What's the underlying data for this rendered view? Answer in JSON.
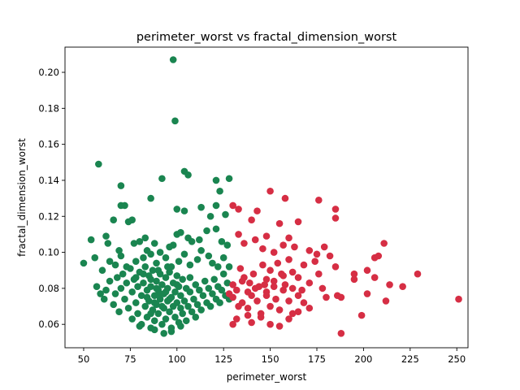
{
  "chart_data": {
    "type": "scatter",
    "title": "perimeter_worst vs fractal_dimension_worst",
    "xlabel": "perimeter_worst",
    "ylabel": "fractal_dimension_worst",
    "xlim": [
      40,
      256
    ],
    "ylim": [
      0.047,
      0.214
    ],
    "xticks": [
      50,
      75,
      100,
      125,
      150,
      175,
      200,
      225,
      250
    ],
    "yticks": [
      0.06,
      0.08,
      0.1,
      0.12,
      0.14,
      0.16,
      0.18,
      0.2
    ],
    "ytick_labels": [
      "0.06",
      "0.08",
      "0.10",
      "0.12",
      "0.14",
      "0.16",
      "0.18",
      "0.20"
    ],
    "grid": false,
    "legend": "none",
    "series": [
      {
        "color": "#1a8550",
        "points": [
          [
            98,
            0.207
          ],
          [
            99,
            0.173
          ],
          [
            58,
            0.149
          ],
          [
            70,
            0.137
          ],
          [
            92,
            0.141
          ],
          [
            104,
            0.145
          ],
          [
            106,
            0.143
          ],
          [
            121,
            0.14
          ],
          [
            128,
            0.141
          ],
          [
            123,
            0.134
          ],
          [
            113,
            0.125
          ],
          [
            100,
            0.124
          ],
          [
            104,
            0.123
          ],
          [
            70,
            0.126
          ],
          [
            72,
            0.126
          ],
          [
            86,
            0.13
          ],
          [
            66,
            0.118
          ],
          [
            74,
            0.117
          ],
          [
            76,
            0.118
          ],
          [
            118,
            0.12
          ],
          [
            126,
            0.121
          ],
          [
            121,
            0.126
          ],
          [
            54,
            0.107
          ],
          [
            62,
            0.109
          ],
          [
            63,
            0.105
          ],
          [
            69,
            0.101
          ],
          [
            77,
            0.105
          ],
          [
            80,
            0.106
          ],
          [
            83,
            0.108
          ],
          [
            88,
            0.105
          ],
          [
            96,
            0.103
          ],
          [
            98,
            0.104
          ],
          [
            100,
            0.11
          ],
          [
            102,
            0.111
          ],
          [
            106,
            0.108
          ],
          [
            108,
            0.106
          ],
          [
            112,
            0.107
          ],
          [
            116,
            0.112
          ],
          [
            121,
            0.113
          ],
          [
            124,
            0.106
          ],
          [
            127,
            0.104
          ],
          [
            50,
            0.094
          ],
          [
            56,
            0.097
          ],
          [
            60,
            0.09
          ],
          [
            64,
            0.095
          ],
          [
            67,
            0.093
          ],
          [
            70,
            0.098
          ],
          [
            73,
            0.092
          ],
          [
            78,
            0.095
          ],
          [
            82,
            0.097
          ],
          [
            84,
            0.101
          ],
          [
            86,
            0.099
          ],
          [
            89,
            0.094
          ],
          [
            91,
            0.1
          ],
          [
            94,
            0.097
          ],
          [
            97,
            0.092
          ],
          [
            101,
            0.095
          ],
          [
            104,
            0.099
          ],
          [
            107,
            0.093
          ],
          [
            111,
            0.096
          ],
          [
            113,
            0.101
          ],
          [
            117,
            0.098
          ],
          [
            119,
            0.094
          ],
          [
            122,
            0.092
          ],
          [
            125,
            0.097
          ],
          [
            128,
            0.092
          ],
          [
            57,
            0.081
          ],
          [
            59,
            0.077
          ],
          [
            61,
            0.074
          ],
          [
            62,
            0.079
          ],
          [
            64,
            0.084
          ],
          [
            66,
            0.071
          ],
          [
            67,
            0.077
          ],
          [
            68,
            0.086
          ],
          [
            69,
            0.067
          ],
          [
            70,
            0.08
          ],
          [
            71,
            0.088
          ],
          [
            72,
            0.074
          ],
          [
            73,
            0.083
          ],
          [
            74,
            0.069
          ],
          [
            75,
            0.091
          ],
          [
            76,
            0.078
          ],
          [
            76,
            0.063
          ],
          [
            77,
            0.085
          ],
          [
            78,
            0.072
          ],
          [
            79,
            0.081
          ],
          [
            79,
            0.066
          ],
          [
            80,
            0.089
          ],
          [
            81,
            0.076
          ],
          [
            81,
            0.06
          ],
          [
            82,
            0.083
          ],
          [
            83,
            0.07
          ],
          [
            83,
            0.092
          ],
          [
            84,
            0.079
          ],
          [
            84,
            0.064
          ],
          [
            85,
            0.087
          ],
          [
            85,
            0.073
          ],
          [
            86,
            0.058
          ],
          [
            86,
            0.081
          ],
          [
            87,
            0.068
          ],
          [
            87,
            0.09
          ],
          [
            88,
            0.076
          ],
          [
            88,
            0.062
          ],
          [
            89,
            0.084
          ],
          [
            89,
            0.071
          ],
          [
            90,
            0.079
          ],
          [
            90,
            0.066
          ],
          [
            91,
            0.088
          ],
          [
            91,
            0.074
          ],
          [
            92,
            0.06
          ],
          [
            92,
            0.082
          ],
          [
            93,
            0.069
          ],
          [
            93,
            0.077
          ],
          [
            94,
            0.086
          ],
          [
            94,
            0.063
          ],
          [
            95,
            0.073
          ],
          [
            95,
            0.08
          ],
          [
            96,
            0.067
          ],
          [
            96,
            0.089
          ],
          [
            97,
            0.075
          ],
          [
            97,
            0.058
          ],
          [
            98,
            0.083
          ],
          [
            98,
            0.07
          ],
          [
            99,
            0.078
          ],
          [
            99,
            0.064
          ],
          [
            100,
            0.087
          ],
          [
            100,
            0.072
          ],
          [
            101,
            0.081
          ],
          [
            101,
            0.061
          ],
          [
            102,
            0.069
          ],
          [
            102,
            0.076
          ],
          [
            103,
            0.085
          ],
          [
            103,
            0.066
          ],
          [
            104,
            0.073
          ],
          [
            105,
            0.08
          ],
          [
            105,
            0.062
          ],
          [
            106,
            0.07
          ],
          [
            107,
            0.078
          ],
          [
            107,
            0.086
          ],
          [
            108,
            0.067
          ],
          [
            109,
            0.074
          ],
          [
            110,
            0.082
          ],
          [
            110,
            0.064
          ],
          [
            111,
            0.071
          ],
          [
            112,
            0.079
          ],
          [
            113,
            0.068
          ],
          [
            114,
            0.076
          ],
          [
            115,
            0.084
          ],
          [
            116,
            0.072
          ],
          [
            117,
            0.08
          ],
          [
            118,
            0.07
          ],
          [
            119,
            0.077
          ],
          [
            120,
            0.085
          ],
          [
            121,
            0.074
          ],
          [
            122,
            0.081
          ],
          [
            123,
            0.072
          ],
          [
            124,
            0.079
          ],
          [
            125,
            0.088
          ],
          [
            126,
            0.076
          ],
          [
            127,
            0.083
          ],
          [
            128,
            0.074
          ],
          [
            93,
            0.055
          ],
          [
            97,
            0.056
          ],
          [
            88,
            0.057
          ],
          [
            102,
            0.059
          ],
          [
            80,
            0.059
          ],
          [
            86,
            0.085
          ],
          [
            90,
            0.09
          ],
          [
            95,
            0.092
          ],
          [
            82,
            0.088
          ],
          [
            78,
            0.086
          ],
          [
            84,
            0.075
          ],
          [
            88,
            0.072
          ],
          [
            92,
            0.07
          ],
          [
            94,
            0.078
          ],
          [
            89,
            0.08
          ],
          [
            91,
            0.077
          ],
          [
            96,
            0.074
          ],
          [
            86,
            0.066
          ],
          [
            100,
            0.082
          ]
        ]
      },
      {
        "color": "#d62e44",
        "points": [
          [
            130,
            0.126
          ],
          [
            133,
            0.124
          ],
          [
            140,
            0.118
          ],
          [
            143,
            0.123
          ],
          [
            150,
            0.134
          ],
          [
            155,
            0.116
          ],
          [
            158,
            0.13
          ],
          [
            165,
            0.117
          ],
          [
            176,
            0.129
          ],
          [
            185,
            0.124
          ],
          [
            185,
            0.119
          ],
          [
            133,
            0.11
          ],
          [
            136,
            0.105
          ],
          [
            142,
            0.107
          ],
          [
            146,
            0.102
          ],
          [
            148,
            0.109
          ],
          [
            152,
            0.1
          ],
          [
            157,
            0.104
          ],
          [
            160,
            0.108
          ],
          [
            163,
            0.103
          ],
          [
            171,
            0.101
          ],
          [
            175,
            0.099
          ],
          [
            179,
            0.103
          ],
          [
            182,
            0.098
          ],
          [
            211,
            0.105
          ],
          [
            134,
            0.091
          ],
          [
            136,
            0.086
          ],
          [
            139,
            0.083
          ],
          [
            141,
            0.088
          ],
          [
            144,
            0.081
          ],
          [
            146,
            0.093
          ],
          [
            148,
            0.085
          ],
          [
            150,
            0.09
          ],
          [
            152,
            0.084
          ],
          [
            154,
            0.094
          ],
          [
            156,
            0.088
          ],
          [
            158,
            0.082
          ],
          [
            160,
            0.096
          ],
          [
            162,
            0.089
          ],
          [
            165,
            0.086
          ],
          [
            168,
            0.093
          ],
          [
            171,
            0.083
          ],
          [
            174,
            0.095
          ],
          [
            176,
            0.088
          ],
          [
            185,
            0.092
          ],
          [
            195,
            0.088
          ],
          [
            202,
            0.09
          ],
          [
            206,
            0.097
          ],
          [
            208,
            0.098
          ],
          [
            229,
            0.088
          ],
          [
            130,
            0.075
          ],
          [
            132,
            0.079
          ],
          [
            135,
            0.072
          ],
          [
            138,
            0.069
          ],
          [
            140,
            0.076
          ],
          [
            143,
            0.073
          ],
          [
            145,
            0.066
          ],
          [
            148,
            0.078
          ],
          [
            150,
            0.07
          ],
          [
            153,
            0.074
          ],
          [
            155,
            0.068
          ],
          [
            157,
            0.079
          ],
          [
            160,
            0.073
          ],
          [
            162,
            0.066
          ],
          [
            165,
            0.076
          ],
          [
            168,
            0.072
          ],
          [
            171,
            0.069
          ],
          [
            178,
            0.08
          ],
          [
            180,
            0.075
          ],
          [
            186,
            0.076
          ],
          [
            188,
            0.075
          ],
          [
            195,
            0.085
          ],
          [
            202,
            0.077
          ],
          [
            206,
            0.086
          ],
          [
            212,
            0.073
          ],
          [
            214,
            0.082
          ],
          [
            221,
            0.081
          ],
          [
            251,
            0.074
          ],
          [
            199,
            0.065
          ],
          [
            130,
            0.06
          ],
          [
            132,
            0.063
          ],
          [
            140,
            0.061
          ],
          [
            145,
            0.064
          ],
          [
            150,
            0.06
          ],
          [
            155,
            0.059
          ],
          [
            160,
            0.063
          ],
          [
            165,
            0.067
          ],
          [
            188,
            0.055
          ],
          [
            130,
            0.082
          ],
          [
            135,
            0.084
          ],
          [
            138,
            0.078
          ],
          [
            142,
            0.08
          ],
          [
            147,
            0.082
          ],
          [
            152,
            0.081
          ],
          [
            157,
            0.087
          ],
          [
            162,
            0.08
          ],
          [
            167,
            0.079
          ],
          [
            138,
            0.065
          ],
          [
            148,
            0.076
          ],
          [
            128,
            0.077
          ],
          [
            133,
            0.07
          ]
        ]
      }
    ]
  }
}
